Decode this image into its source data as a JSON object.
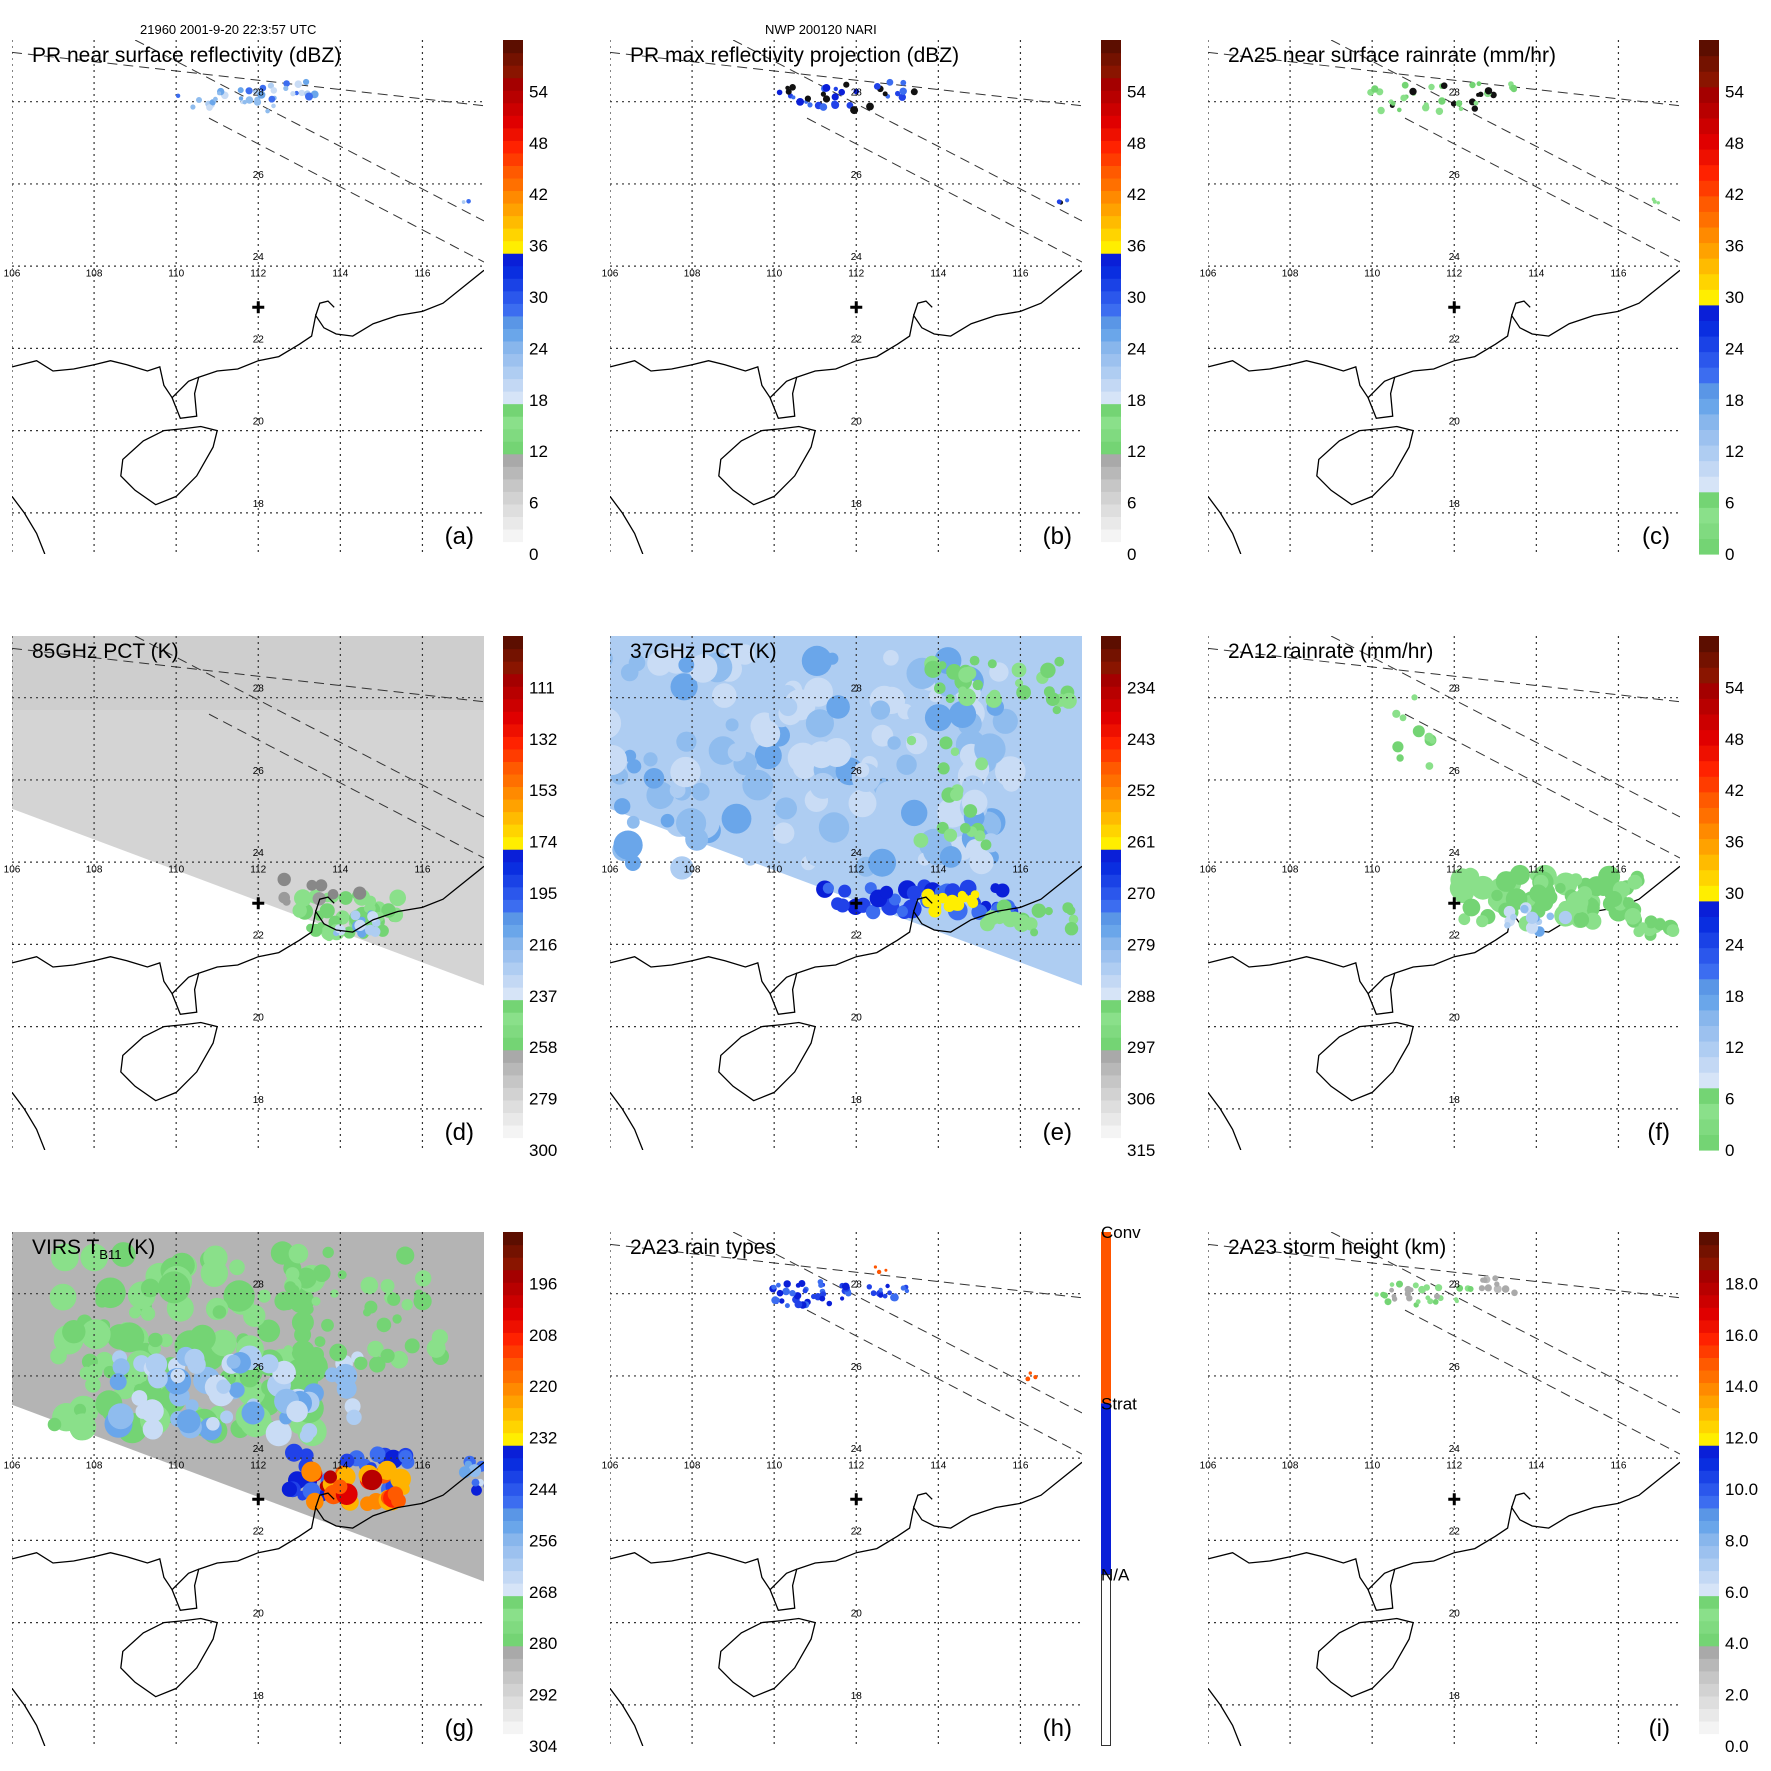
{
  "header": {
    "orbit": "21960 2001-9-20 22:3:57 UTC",
    "case": "NWP 200120 NARI"
  },
  "map": {
    "lon_ticks": [
      "106",
      "108",
      "110",
      "112",
      "114",
      "116"
    ],
    "lat_ticks": [
      "28",
      "26",
      "24",
      "22",
      "20",
      "18"
    ],
    "lon_range": [
      106,
      117.5
    ],
    "lat_range": [
      17,
      29.5
    ],
    "center_marker": [
      112,
      23
    ]
  },
  "colors": {
    "grey_ramp": [
      "#ffffff",
      "#f2f2f2",
      "#e6e6e6",
      "#d9d9d9",
      "#cccccc",
      "#bfbfbf",
      "#b3b3b3",
      "#a6a6a6"
    ],
    "green": [
      "#74d474",
      "#8ae08a"
    ],
    "light_blue": [
      "#c9dcf5",
      "#aecdf2",
      "#8fbcee",
      "#6aa6ea"
    ],
    "blue": [
      "#3c6df0",
      "#2142e8",
      "#0a1fd8"
    ],
    "yellow": "#ffee00",
    "orange": [
      "#ffb300",
      "#ff8800",
      "#ff5a00"
    ],
    "red": [
      "#ff2200",
      "#e00000",
      "#b80000"
    ],
    "dark": [
      "#8a1500",
      "#5c0e00"
    ],
    "conv": "#ff5500",
    "strat": "#0a1fd8"
  },
  "panels": [
    {
      "label": "(a)",
      "title": "PR near surface reflectivity (dBZ)",
      "colorbar": [
        "0",
        "6",
        "12",
        "18",
        "24",
        "30",
        "36",
        "42",
        "48",
        "54"
      ]
    },
    {
      "label": "(b)",
      "title": "PR max reflectivity projection (dBZ)",
      "colorbar": [
        "0",
        "6",
        "12",
        "18",
        "24",
        "30",
        "36",
        "42",
        "48",
        "54"
      ]
    },
    {
      "label": "(c)",
      "title": "2A25 near surface rainrate (mm/hr)",
      "colorbar": [
        "0",
        "6",
        "12",
        "18",
        "24",
        "30",
        "36",
        "42",
        "48",
        "54"
      ]
    },
    {
      "label": "(d)",
      "title": "85GHz PCT (K)",
      "colorbar": [
        "300",
        "279",
        "258",
        "237",
        "216",
        "195",
        "174",
        "153",
        "132",
        "111"
      ]
    },
    {
      "label": "(e)",
      "title": "37GHz PCT (K)",
      "colorbar": [
        "315",
        "306",
        "297",
        "288",
        "279",
        "270",
        "261",
        "252",
        "243",
        "234"
      ]
    },
    {
      "label": "(f)",
      "title": "2A12 rainrate (mm/hr)",
      "colorbar": [
        "0",
        "6",
        "12",
        "18",
        "24",
        "30",
        "36",
        "42",
        "48",
        "54"
      ]
    },
    {
      "label": "(g)",
      "title": "VIRS T",
      "title_sub": "B11",
      "title_suffix": " (K)",
      "colorbar": [
        "304",
        "292",
        "280",
        "268",
        "256",
        "244",
        "232",
        "220",
        "208",
        "196"
      ]
    },
    {
      "label": "(h)",
      "title": "2A23 rain types",
      "colorbar": [
        "N/A",
        "Strat",
        "Conv"
      ]
    },
    {
      "label": "(i)",
      "title": "2A23 storm height (km)",
      "colorbar": [
        "0.0",
        "2.0",
        "4.0",
        "6.0",
        "8.0",
        "10.0",
        "12.0",
        "14.0",
        "16.0",
        "18.0"
      ]
    }
  ]
}
